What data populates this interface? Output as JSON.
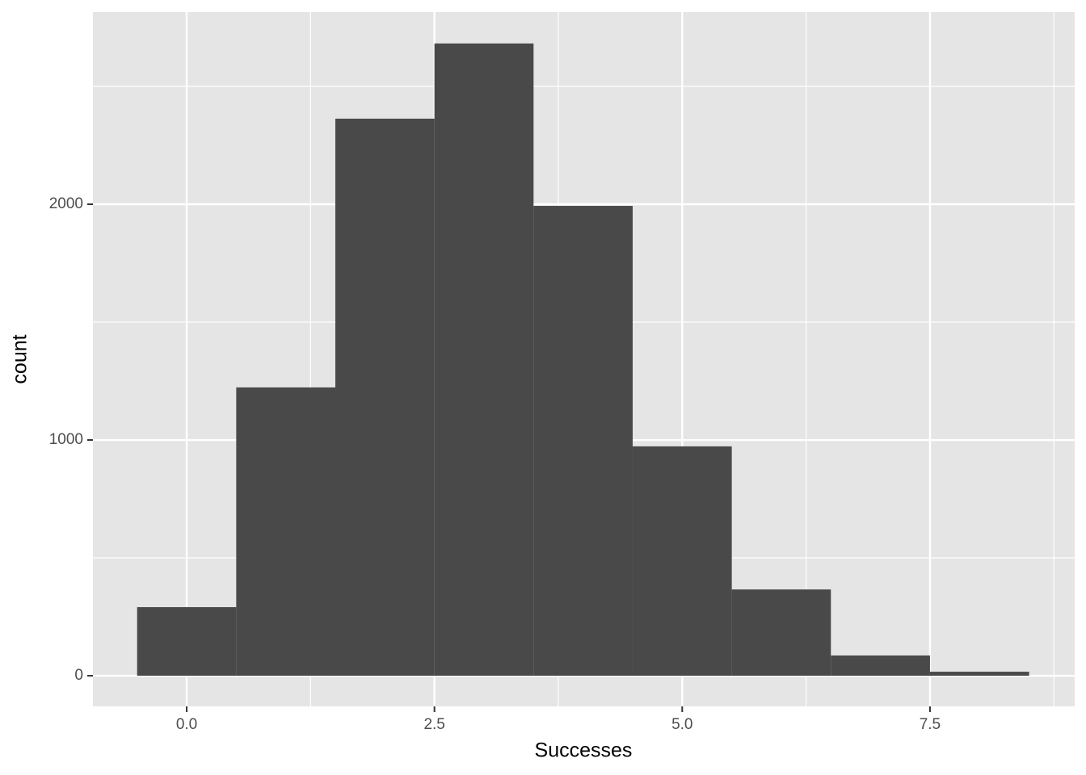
{
  "chart_data": {
    "type": "histogram",
    "x_label": "Successes",
    "y_label": "count",
    "bins": [
      -0.5,
      0.5,
      1.5,
      2.5,
      3.5,
      4.5,
      5.5,
      6.5,
      7.5,
      8.5
    ],
    "counts": [
      291,
      1223,
      2363,
      2682,
      1993,
      973,
      366,
      86,
      17
    ],
    "color": "#494949",
    "xlim": [
      -0.946,
      8.96
    ],
    "ylim": [
      -130,
      2815
    ],
    "xticks": [
      {
        "value": 0,
        "label": "0.0"
      },
      2.5,
      {
        "value": 5,
        "label": "5.0"
      },
      7.5
    ],
    "yticks": [
      0,
      1000,
      2000
    ],
    "xminor": [
      1.25,
      3.75,
      6.25,
      8.75
    ],
    "yminor": [
      500,
      1500,
      2500
    ],
    "grid": true
  }
}
